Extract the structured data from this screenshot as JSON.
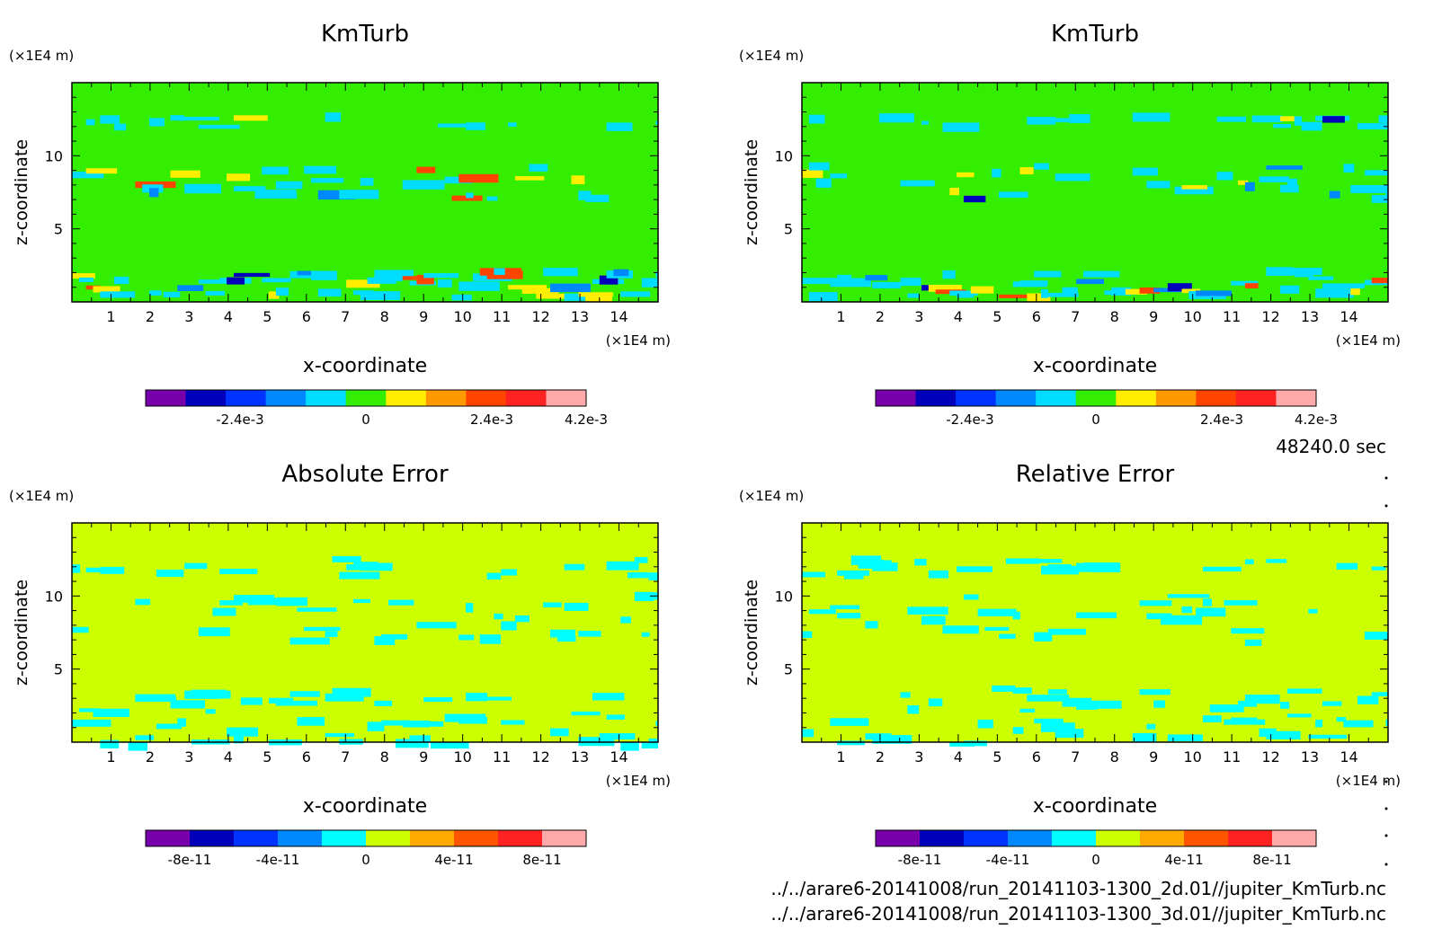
{
  "time_label": "48240.0 sec",
  "files": [
    "../../arare6-20141008/run_20141103-1300_2d.01//jupiter_KmTurb.nc",
    "../../arare6-20141008/run_20141103-1300_3d.01//jupiter_KmTurb.nc"
  ],
  "chart_data": [
    {
      "type": "heatmap",
      "title": "KmTurb",
      "xlabel": "x-coordinate",
      "ylabel": "z-coordinate",
      "x_unit": "(×1E4 m)",
      "y_unit": "(×1E4 m)",
      "xlim": [
        0,
        15
      ],
      "ylim": [
        0,
        15
      ],
      "xticks": [
        1,
        2,
        3,
        4,
        5,
        6,
        7,
        8,
        9,
        10,
        11,
        12,
        13,
        14
      ],
      "yticks": [
        5,
        10
      ],
      "background": "#33ee00",
      "colorbar": {
        "colors": [
          "#7700aa",
          "#0000bb",
          "#0033ff",
          "#0088ff",
          "#00ddff",
          "#33ee00",
          "#ffee00",
          "#ff9900",
          "#ff4400",
          "#ff2222",
          "#ffaaaa"
        ],
        "tick_labels": [
          "-2.4e-3",
          "0",
          "2.4e-3",
          "4.2e-3"
        ],
        "tick_positions": [
          -0.0024,
          0,
          0.0024,
          0.0042
        ],
        "range": [
          -0.0042,
          0.0042
        ]
      }
    },
    {
      "type": "heatmap",
      "title": "KmTurb",
      "xlabel": "x-coordinate",
      "ylabel": "z-coordinate",
      "x_unit": "(×1E4 m)",
      "y_unit": "(×1E4 m)",
      "xlim": [
        0,
        15
      ],
      "ylim": [
        0,
        15
      ],
      "xticks": [
        1,
        2,
        3,
        4,
        5,
        6,
        7,
        8,
        9,
        10,
        11,
        12,
        13,
        14
      ],
      "yticks": [
        5,
        10
      ],
      "background": "#33ee00",
      "colorbar": {
        "colors": [
          "#7700aa",
          "#0000bb",
          "#0033ff",
          "#0088ff",
          "#00ddff",
          "#33ee00",
          "#ffee00",
          "#ff9900",
          "#ff4400",
          "#ff2222",
          "#ffaaaa"
        ],
        "tick_labels": [
          "-2.4e-3",
          "0",
          "2.4e-3",
          "4.2e-3"
        ],
        "tick_positions": [
          -0.0024,
          0,
          0.0024,
          0.0042
        ],
        "range": [
          -0.0042,
          0.0042
        ]
      }
    },
    {
      "type": "heatmap",
      "title": "Absolute Error",
      "xlabel": "x-coordinate",
      "ylabel": "z-coordinate",
      "x_unit": "(×1E4 m)",
      "y_unit": "(×1E4 m)",
      "xlim": [
        0,
        15
      ],
      "ylim": [
        0,
        15
      ],
      "xticks": [
        1,
        2,
        3,
        4,
        5,
        6,
        7,
        8,
        9,
        10,
        11,
        12,
        13,
        14
      ],
      "yticks": [
        5,
        10
      ],
      "background": "#ccff00",
      "colorbar": {
        "colors": [
          "#7700aa",
          "#0000bb",
          "#0033ff",
          "#0088ff",
          "#00ffff",
          "#ccff00",
          "#ffaa00",
          "#ff5500",
          "#ff2222",
          "#ffaaaa"
        ],
        "tick_labels": [
          "-8e-11",
          "-4e-11",
          "0",
          "4e-11",
          "8e-11"
        ],
        "tick_positions": [
          -8e-11,
          -4e-11,
          0,
          4e-11,
          8e-11
        ],
        "range": [
          -1e-10,
          1e-10
        ]
      }
    },
    {
      "type": "heatmap",
      "title": "Relative Error",
      "xlabel": "x-coordinate",
      "ylabel": "z-coordinate",
      "x_unit": "(×1E4 m)",
      "y_unit": "(×1E4 m)",
      "xlim": [
        0,
        15
      ],
      "ylim": [
        0,
        15
      ],
      "xticks": [
        1,
        2,
        3,
        4,
        5,
        6,
        7,
        8,
        9,
        10,
        11,
        12,
        13,
        14
      ],
      "yticks": [
        5,
        10
      ],
      "background": "#ccff00",
      "colorbar": {
        "colors": [
          "#7700aa",
          "#0000bb",
          "#0033ff",
          "#0088ff",
          "#00ffff",
          "#ccff00",
          "#ffaa00",
          "#ff5500",
          "#ff2222",
          "#ffaaaa"
        ],
        "tick_labels": [
          "-8e-11",
          "-4e-11",
          "0",
          "4e-11",
          "8e-11"
        ],
        "tick_positions": [
          -8e-11,
          -4e-11,
          0,
          4e-11,
          8e-11
        ],
        "range": [
          -1e-10,
          1e-10
        ]
      }
    }
  ]
}
